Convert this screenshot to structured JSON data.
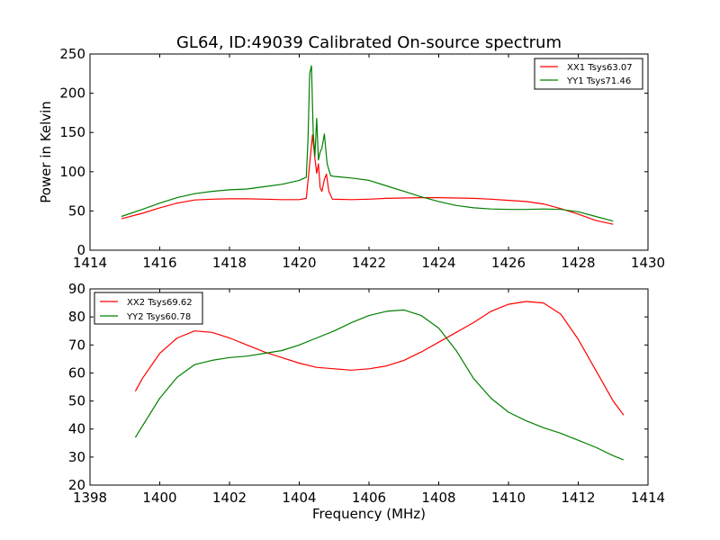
{
  "chart_data": [
    {
      "type": "line",
      "title": "GL64, ID:49039 Calibrated On-source spectrum",
      "xlabel": "",
      "ylabel": "Power in Kelvin",
      "xlim": [
        1414,
        1430
      ],
      "ylim": [
        0,
        250
      ],
      "xticks": [
        1414,
        1416,
        1418,
        1420,
        1422,
        1424,
        1426,
        1428,
        1430
      ],
      "yticks": [
        0,
        50,
        100,
        150,
        200,
        250
      ],
      "grid": false,
      "legend_position": "top-right",
      "series": [
        {
          "name": "XX1 Tsys63.07",
          "color": "#ff0000",
          "points": [
            [
              1414.9,
              40
            ],
            [
              1415.5,
              47
            ],
            [
              1416,
              54
            ],
            [
              1416.5,
              60
            ],
            [
              1417,
              64
            ],
            [
              1417.5,
              65
            ],
            [
              1418,
              65.5
            ],
            [
              1418.5,
              65.5
            ],
            [
              1419,
              65
            ],
            [
              1419.5,
              64.5
            ],
            [
              1420,
              64.5
            ],
            [
              1420.2,
              66
            ],
            [
              1420.3,
              110
            ],
            [
              1420.38,
              147
            ],
            [
              1420.44,
              120
            ],
            [
              1420.5,
              98
            ],
            [
              1420.55,
              110
            ],
            [
              1420.6,
              80
            ],
            [
              1420.65,
              75
            ],
            [
              1420.72,
              90
            ],
            [
              1420.78,
              97
            ],
            [
              1420.85,
              75
            ],
            [
              1420.95,
              65
            ],
            [
              1421.5,
              64.5
            ],
            [
              1422,
              65
            ],
            [
              1422.5,
              66
            ],
            [
              1423,
              66.5
            ],
            [
              1423.5,
              67
            ],
            [
              1424,
              67
            ],
            [
              1424.5,
              66.5
            ],
            [
              1425,
              66
            ],
            [
              1425.5,
              65
            ],
            [
              1426,
              63.5
            ],
            [
              1426.5,
              62
            ],
            [
              1427,
              59
            ],
            [
              1427.5,
              53
            ],
            [
              1428,
              46
            ],
            [
              1428.5,
              38
            ],
            [
              1429,
              33
            ]
          ]
        },
        {
          "name": "YY1 Tsys71.46",
          "color": "#008000",
          "points": [
            [
              1414.9,
              43
            ],
            [
              1415.5,
              52
            ],
            [
              1416,
              60
            ],
            [
              1416.5,
              67
            ],
            [
              1417,
              72
            ],
            [
              1417.5,
              75
            ],
            [
              1418,
              77
            ],
            [
              1418.5,
              78
            ],
            [
              1419,
              81
            ],
            [
              1419.5,
              84
            ],
            [
              1420,
              89
            ],
            [
              1420.2,
              93
            ],
            [
              1420.25,
              140
            ],
            [
              1420.3,
              225
            ],
            [
              1420.35,
              235
            ],
            [
              1420.4,
              150
            ],
            [
              1420.45,
              120
            ],
            [
              1420.5,
              168
            ],
            [
              1420.55,
              115
            ],
            [
              1420.6,
              125
            ],
            [
              1420.65,
              130
            ],
            [
              1420.72,
              148
            ],
            [
              1420.8,
              110
            ],
            [
              1420.9,
              95
            ],
            [
              1421,
              94
            ],
            [
              1421.5,
              92
            ],
            [
              1422,
              89
            ],
            [
              1422.5,
              82
            ],
            [
              1423,
              75
            ],
            [
              1423.5,
              68
            ],
            [
              1424,
              62
            ],
            [
              1424.5,
              57
            ],
            [
              1425,
              54
            ],
            [
              1425.5,
              52.5
            ],
            [
              1426,
              52
            ],
            [
              1426.5,
              52
            ],
            [
              1427,
              52.5
            ],
            [
              1427.5,
              52
            ],
            [
              1428,
              49
            ],
            [
              1428.5,
              43
            ],
            [
              1429,
              37
            ]
          ]
        }
      ]
    },
    {
      "type": "line",
      "title": "",
      "xlabel": "Frequency (MHz)",
      "ylabel": "",
      "xlim": [
        1398,
        1414
      ],
      "ylim": [
        20,
        90
      ],
      "xticks": [
        1398,
        1400,
        1402,
        1404,
        1406,
        1408,
        1410,
        1412,
        1414
      ],
      "yticks": [
        20,
        30,
        40,
        50,
        60,
        70,
        80,
        90
      ],
      "grid": false,
      "legend_position": "top-left",
      "series": [
        {
          "name": "XX2 Tsys69.62",
          "color": "#ff0000",
          "points": [
            [
              1399.3,
              53.5
            ],
            [
              1399.5,
              58
            ],
            [
              1400,
              67
            ],
            [
              1400.5,
              72.5
            ],
            [
              1401,
              75
            ],
            [
              1401.5,
              74.5
            ],
            [
              1402,
              72.5
            ],
            [
              1402.5,
              70
            ],
            [
              1403,
              67.5
            ],
            [
              1403.5,
              65.5
            ],
            [
              1404,
              63.5
            ],
            [
              1404.5,
              62
            ],
            [
              1405,
              61.5
            ],
            [
              1405.5,
              61
            ],
            [
              1406,
              61.5
            ],
            [
              1406.5,
              62.5
            ],
            [
              1407,
              64.5
            ],
            [
              1407.5,
              67.5
            ],
            [
              1408,
              71
            ],
            [
              1408.5,
              74.5
            ],
            [
              1409,
              78
            ],
            [
              1409.5,
              82
            ],
            [
              1410,
              84.5
            ],
            [
              1410.5,
              85.5
            ],
            [
              1411,
              85
            ],
            [
              1411.5,
              81
            ],
            [
              1412,
              72
            ],
            [
              1412.5,
              61
            ],
            [
              1413,
              50
            ],
            [
              1413.3,
              45
            ]
          ]
        },
        {
          "name": "YY2 Tsys60.78",
          "color": "#008000",
          "points": [
            [
              1399.3,
              37
            ],
            [
              1399.5,
              41
            ],
            [
              1400,
              51
            ],
            [
              1400.5,
              58.5
            ],
            [
              1401,
              63
            ],
            [
              1401.5,
              64.5
            ],
            [
              1402,
              65.5
            ],
            [
              1402.5,
              66
            ],
            [
              1403,
              67
            ],
            [
              1403.5,
              68
            ],
            [
              1404,
              70
            ],
            [
              1404.5,
              72.5
            ],
            [
              1405,
              75
            ],
            [
              1405.5,
              78
            ],
            [
              1406,
              80.5
            ],
            [
              1406.5,
              82
            ],
            [
              1407,
              82.5
            ],
            [
              1407.5,
              80.5
            ],
            [
              1408,
              76
            ],
            [
              1408.5,
              68
            ],
            [
              1409,
              58
            ],
            [
              1409.5,
              51
            ],
            [
              1410,
              46
            ],
            [
              1410.5,
              43
            ],
            [
              1411,
              40.5
            ],
            [
              1411.5,
              38.5
            ],
            [
              1412,
              36
            ],
            [
              1412.5,
              33.5
            ],
            [
              1413,
              30.5
            ],
            [
              1413.3,
              29
            ]
          ]
        }
      ]
    }
  ]
}
